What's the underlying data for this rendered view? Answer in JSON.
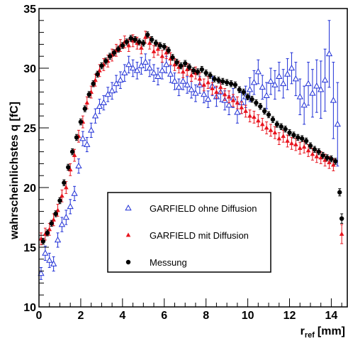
{
  "colors": {
    "garfield_ohne": "#1f2fd6",
    "garfield_mit": "#e8141e",
    "messung": "#000000"
  },
  "chart_data": {
    "type": "scatter",
    "title": "",
    "xlabel": "r",
    "xlabel_sub": "ref",
    "xlabel_unit": "[mm]",
    "ylabel": "wahrscheinlichstes q [fC]",
    "xlim": [
      0,
      14.8
    ],
    "ylim": [
      10,
      35
    ],
    "xticks": [
      "0",
      "2",
      "4",
      "6",
      "8",
      "10",
      "12",
      "14"
    ],
    "yticks": [
      "10",
      "15",
      "20",
      "25",
      "30",
      "35"
    ],
    "grid": false,
    "legend_position": "bottom-center",
    "legend": [
      "GARFIELD ohne Diffusion",
      "GARFIELD mit Diffusion",
      "Messung"
    ],
    "series": [
      {
        "name": "GARFIELD ohne Diffusion",
        "marker": "open-triangle",
        "x": [
          0.1,
          0.3,
          0.5,
          0.7,
          0.9,
          1.1,
          1.3,
          1.5,
          1.7,
          1.9,
          2.1,
          2.3,
          2.5,
          2.7,
          2.9,
          3.1,
          3.3,
          3.5,
          3.7,
          3.9,
          4.1,
          4.3,
          4.5,
          4.7,
          4.9,
          5.1,
          5.3,
          5.5,
          5.7,
          5.9,
          6.1,
          6.3,
          6.5,
          6.7,
          6.9,
          7.1,
          7.3,
          7.5,
          7.7,
          7.9,
          8.1,
          8.3,
          8.5,
          8.7,
          8.9,
          9.1,
          9.3,
          9.5,
          9.7,
          9.9,
          10.1,
          10.3,
          10.5,
          10.7,
          10.9,
          11.1,
          11.3,
          11.5,
          11.7,
          11.9,
          12.1,
          12.3,
          12.5,
          12.7,
          12.9,
          13.1,
          13.3,
          13.5,
          13.7,
          13.9,
          14.1,
          14.3
        ],
        "y": [
          12.8,
          14.5,
          13.9,
          13.6,
          15.6,
          16.9,
          17.5,
          18.4,
          19.5,
          21.8,
          24.1,
          23.6,
          24.8,
          26.0,
          26.8,
          27.1,
          27.8,
          28.1,
          28.7,
          29.0,
          29.6,
          30.3,
          30.0,
          29.8,
          30.2,
          30.5,
          30.0,
          29.6,
          29.3,
          29.8,
          30.3,
          29.5,
          28.9,
          28.4,
          28.9,
          28.6,
          28.2,
          27.9,
          28.6,
          27.8,
          27.4,
          28.5,
          27.6,
          28.0,
          27.3,
          26.9,
          27.5,
          26.3,
          27.1,
          27.6,
          28.2,
          28.8,
          29.7,
          28.4,
          27.7,
          28.9,
          28.6,
          29.3,
          28.7,
          29.5,
          30.0,
          29.1,
          27.6,
          26.9,
          28.7,
          27.9,
          28.5,
          28.2,
          29.0,
          31.2,
          27.3,
          25.3
        ],
        "err": [
          0.5,
          0.6,
          0.6,
          0.6,
          0.6,
          0.6,
          0.6,
          0.6,
          0.6,
          0.6,
          0.6,
          0.6,
          0.6,
          0.6,
          0.6,
          0.6,
          0.6,
          0.7,
          0.7,
          0.7,
          0.7,
          0.7,
          0.7,
          0.7,
          0.7,
          0.7,
          0.7,
          0.7,
          0.7,
          0.7,
          0.7,
          0.7,
          0.7,
          0.7,
          0.7,
          0.7,
          0.7,
          0.7,
          0.7,
          0.7,
          0.7,
          0.8,
          0.8,
          0.8,
          0.8,
          0.8,
          0.8,
          0.9,
          0.9,
          0.9,
          1.0,
          1.0,
          1.0,
          1.0,
          1.1,
          1.1,
          1.2,
          1.2,
          1.2,
          1.3,
          1.3,
          1.4,
          1.5,
          1.6,
          1.8,
          2.0,
          2.2,
          2.4,
          2.6,
          2.8,
          3.2,
          3.5
        ]
      },
      {
        "name": "GARFIELD mit Diffusion",
        "marker": "filled-triangle",
        "x": [
          0.1,
          0.3,
          0.5,
          0.7,
          0.9,
          1.1,
          1.3,
          1.5,
          1.7,
          1.9,
          2.1,
          2.3,
          2.5,
          2.7,
          2.9,
          3.1,
          3.3,
          3.5,
          3.7,
          3.9,
          4.1,
          4.3,
          4.5,
          4.7,
          4.9,
          5.1,
          5.3,
          5.5,
          5.7,
          5.9,
          6.1,
          6.3,
          6.5,
          6.7,
          6.9,
          7.1,
          7.3,
          7.5,
          7.7,
          7.9,
          8.1,
          8.3,
          8.5,
          8.7,
          8.9,
          9.1,
          9.3,
          9.5,
          9.7,
          9.9,
          10.1,
          10.3,
          10.5,
          10.7,
          10.9,
          11.1,
          11.3,
          11.5,
          11.7,
          11.9,
          12.1,
          12.3,
          12.5,
          12.7,
          12.9,
          13.1,
          13.3,
          13.5,
          13.7,
          13.9,
          14.1,
          14.5
        ],
        "y": [
          15.7,
          16.1,
          16.5,
          17.3,
          18.1,
          19.3,
          20.0,
          21.5,
          22.7,
          24.3,
          25.5,
          27.1,
          28.0,
          29.0,
          29.8,
          30.3,
          30.6,
          31.1,
          31.5,
          31.9,
          32.2,
          31.9,
          32.3,
          32.1,
          31.7,
          32.6,
          32.1,
          31.4,
          31.6,
          31.0,
          31.3,
          30.8,
          30.3,
          30.1,
          29.7,
          29.9,
          29.4,
          29.6,
          29.1,
          28.6,
          28.8,
          28.3,
          28.0,
          28.4,
          27.8,
          27.6,
          27.3,
          27.1,
          26.7,
          26.4,
          26.0,
          25.9,
          25.6,
          25.3,
          25.0,
          24.8,
          24.6,
          24.1,
          24.3,
          23.9,
          23.7,
          23.6,
          23.3,
          23.4,
          23.1,
          22.8,
          22.6,
          22.5,
          22.3,
          22.1,
          21.9,
          16.1
        ],
        "err": [
          0.5,
          0.5,
          0.5,
          0.5,
          0.5,
          0.5,
          0.5,
          0.5,
          0.5,
          0.5,
          0.5,
          0.5,
          0.5,
          0.5,
          0.5,
          0.5,
          0.5,
          0.5,
          0.5,
          0.5,
          0.5,
          0.5,
          0.5,
          0.5,
          0.5,
          0.5,
          0.5,
          0.5,
          0.5,
          0.5,
          0.5,
          0.5,
          0.5,
          0.5,
          0.5,
          0.5,
          0.5,
          0.5,
          0.5,
          0.5,
          0.5,
          0.5,
          0.5,
          0.5,
          0.5,
          0.5,
          0.5,
          0.5,
          0.5,
          0.5,
          0.5,
          0.5,
          0.5,
          0.5,
          0.5,
          0.5,
          0.5,
          0.5,
          0.5,
          0.5,
          0.5,
          0.5,
          0.5,
          0.5,
          0.5,
          0.5,
          0.5,
          0.5,
          0.5,
          0.5,
          0.5,
          0.8
        ]
      },
      {
        "name": "Messung",
        "marker": "filled-circle",
        "x": [
          0.2,
          0.4,
          0.6,
          0.8,
          1.0,
          1.2,
          1.4,
          1.6,
          1.8,
          2.0,
          2.2,
          2.4,
          2.6,
          2.8,
          3.0,
          3.2,
          3.4,
          3.6,
          3.8,
          4.0,
          4.2,
          4.4,
          4.6,
          4.8,
          5.0,
          5.2,
          5.4,
          5.6,
          5.8,
          6.0,
          6.2,
          6.4,
          6.6,
          6.8,
          7.0,
          7.2,
          7.4,
          7.6,
          7.8,
          8.0,
          8.2,
          8.4,
          8.6,
          8.8,
          9.0,
          9.2,
          9.4,
          9.6,
          9.8,
          10.0,
          10.2,
          10.4,
          10.6,
          10.8,
          11.0,
          11.2,
          11.4,
          11.6,
          11.8,
          12.0,
          12.2,
          12.4,
          12.6,
          12.8,
          13.0,
          13.2,
          13.4,
          13.6,
          13.8,
          14.0,
          14.2,
          14.4,
          14.5
        ],
        "y": [
          15.5,
          16.2,
          17.0,
          17.8,
          18.9,
          20.4,
          21.7,
          23.0,
          24.2,
          25.5,
          26.6,
          27.8,
          28.7,
          29.5,
          30.2,
          30.6,
          31.0,
          31.3,
          31.6,
          31.9,
          32.2,
          32.5,
          32.4,
          32.2,
          32.1,
          32.8,
          32.4,
          32.1,
          31.9,
          31.8,
          31.5,
          30.9,
          30.5,
          30.2,
          30.4,
          30.1,
          29.8,
          29.7,
          29.9,
          29.6,
          29.4,
          29.1,
          29.0,
          28.9,
          28.8,
          28.7,
          28.6,
          28.2,
          28.0,
          27.6,
          27.4,
          27.1,
          26.8,
          26.4,
          26.1,
          25.7,
          25.3,
          25.1,
          24.9,
          24.6,
          24.4,
          24.2,
          24.1,
          23.9,
          23.5,
          23.2,
          23.0,
          22.7,
          22.5,
          22.4,
          22.2,
          19.6,
          17.4
        ],
        "err": [
          0.25,
          0.25,
          0.25,
          0.25,
          0.25,
          0.25,
          0.25,
          0.25,
          0.25,
          0.25,
          0.25,
          0.25,
          0.25,
          0.25,
          0.25,
          0.25,
          0.25,
          0.25,
          0.25,
          0.25,
          0.25,
          0.25,
          0.25,
          0.25,
          0.25,
          0.25,
          0.25,
          0.25,
          0.25,
          0.25,
          0.25,
          0.25,
          0.25,
          0.25,
          0.25,
          0.25,
          0.25,
          0.25,
          0.25,
          0.25,
          0.25,
          0.25,
          0.25,
          0.25,
          0.25,
          0.25,
          0.25,
          0.25,
          0.25,
          0.25,
          0.25,
          0.25,
          0.25,
          0.25,
          0.25,
          0.25,
          0.25,
          0.25,
          0.25,
          0.25,
          0.25,
          0.25,
          0.25,
          0.25,
          0.25,
          0.25,
          0.25,
          0.25,
          0.25,
          0.25,
          0.25,
          0.3,
          0.4
        ]
      }
    ]
  }
}
